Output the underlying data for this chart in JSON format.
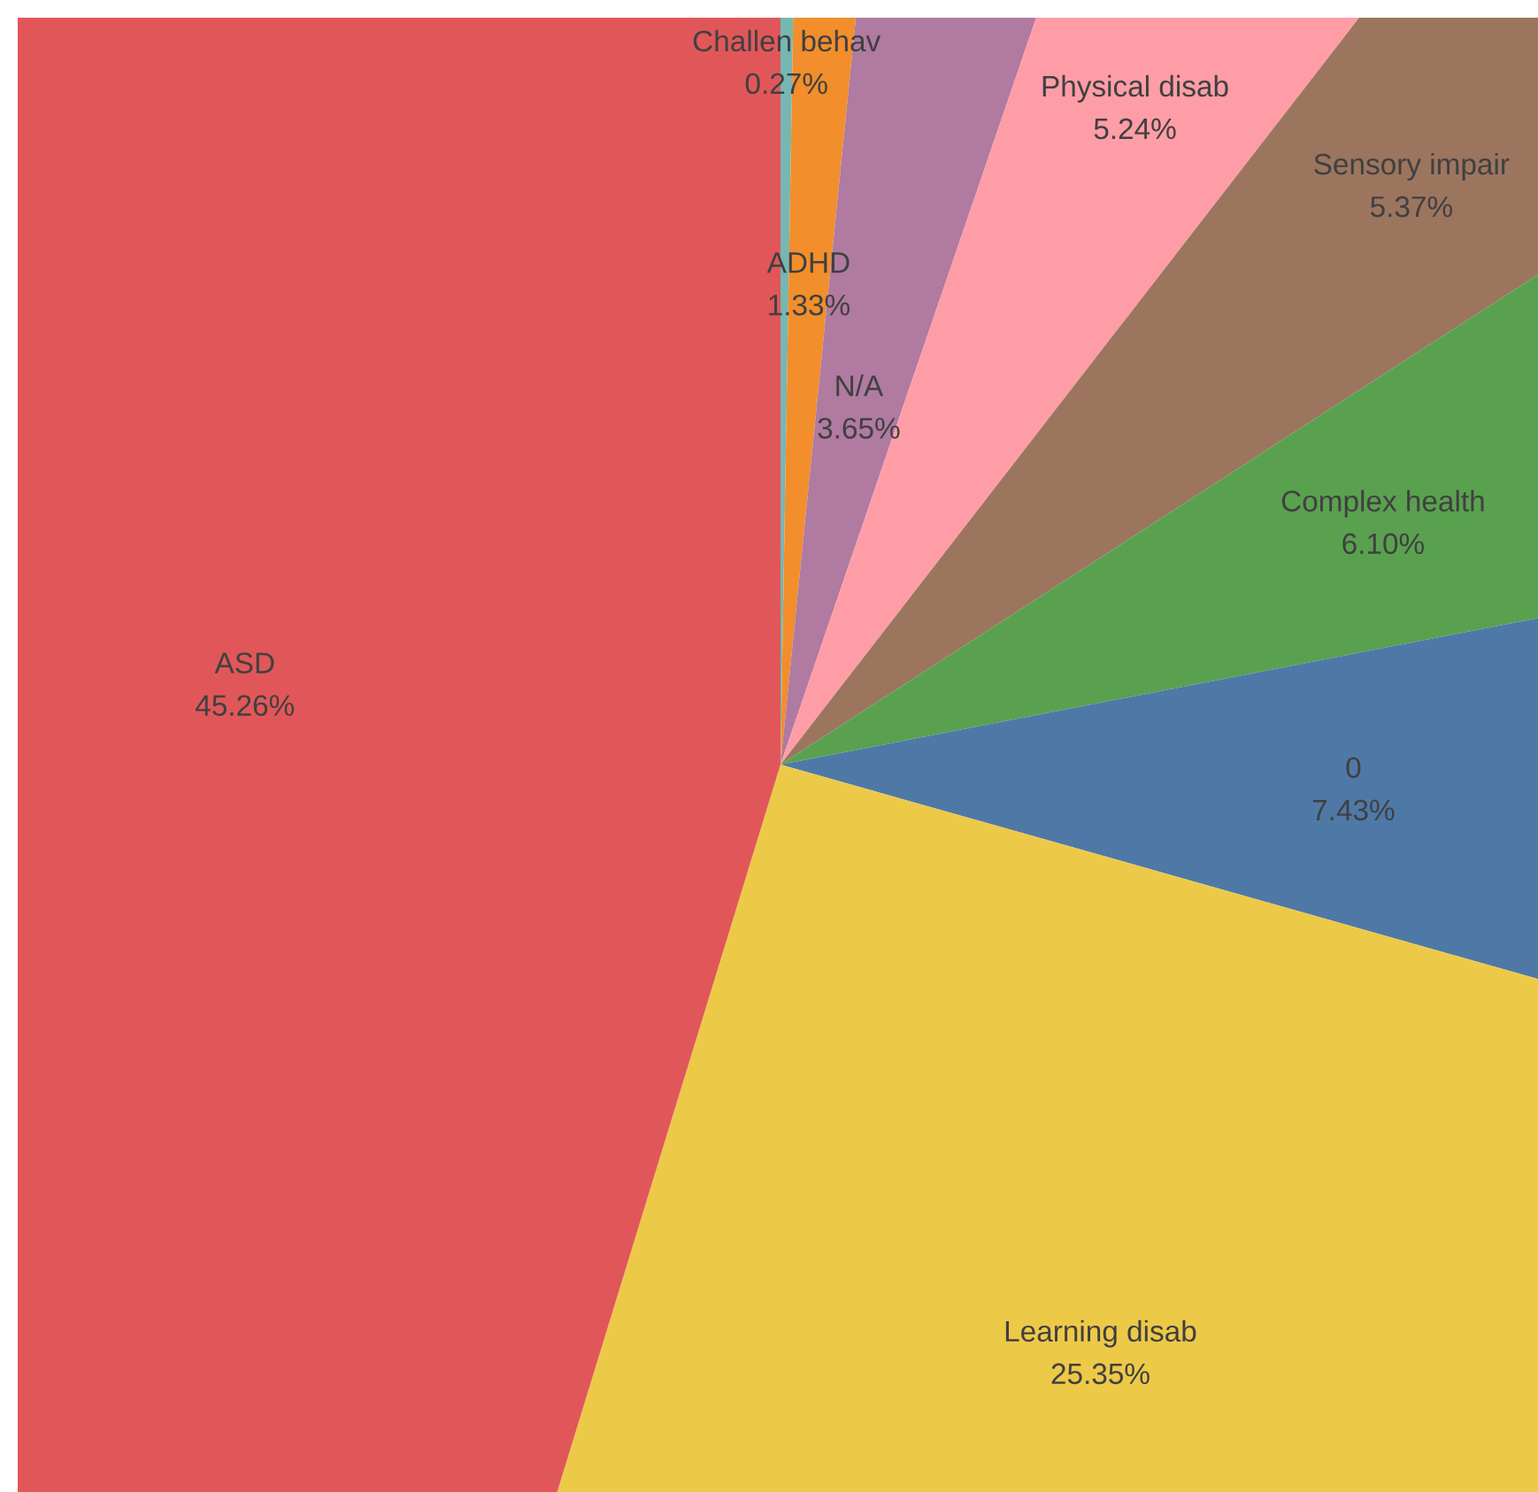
{
  "chart_data": {
    "type": "pie",
    "categories": [
      "Challen behav",
      "ADHD",
      "N/A",
      "Physical disab",
      "Sensory impair",
      "Complex health",
      "0",
      "Learning disab",
      "ASD"
    ],
    "values": [
      0.27,
      1.33,
      3.65,
      5.24,
      5.37,
      6.1,
      7.43,
      25.35,
      45.26
    ],
    "value_labels": [
      "0.27%",
      "1.33%",
      "3.65%",
      "5.24%",
      "5.37%",
      "6.10%",
      "7.43%",
      "25.35%",
      "45.26%"
    ],
    "colors": [
      "#76b7b2",
      "#f28e2b",
      "#b07aa1",
      "#ff9da7",
      "#9c755f",
      "#59a14f",
      "#4e79a7",
      "#edc948",
      "#e15759"
    ]
  }
}
